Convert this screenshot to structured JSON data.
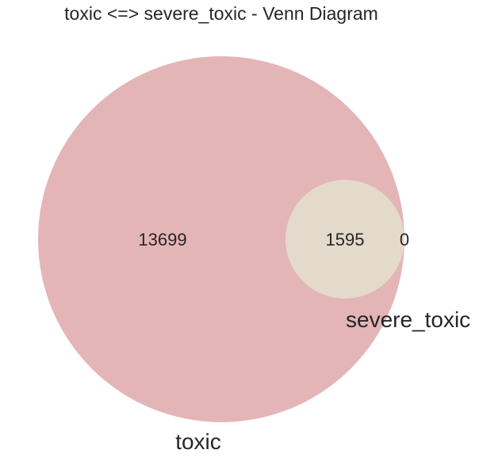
{
  "title": "toxic <=> severe_toxic - Venn Diagram",
  "chart_data": {
    "type": "venn",
    "sets": [
      {
        "name": "toxic",
        "color": "#e4b5b7"
      },
      {
        "name": "severe_toxic",
        "color": "#e3dacb"
      }
    ],
    "regions": {
      "toxic_only": "13699",
      "both": "1595",
      "severe_toxic_only": "0"
    }
  }
}
